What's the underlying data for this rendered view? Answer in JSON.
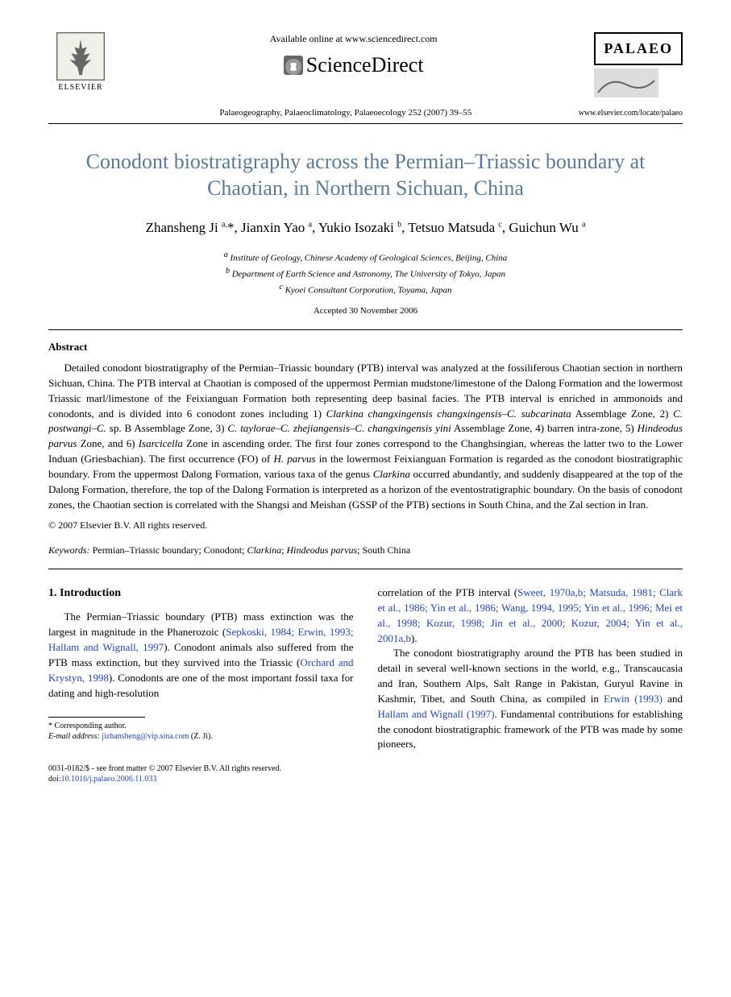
{
  "header": {
    "available_text": "Available online at www.sciencedirect.com",
    "sciencedirect": "ScienceDirect",
    "elsevier": "ELSEVIER",
    "palaeo": "PALAEO",
    "journal_ref": "Palaeogeography, Palaeoclimatology, Palaeoecology 252 (2007) 39–55",
    "journal_url": "www.elsevier.com/locate/palaeo"
  },
  "title": "Conodont biostratigraphy across the Permian–Triassic boundary at Chaotian, in Northern Sichuan, China",
  "authors_html": "Zhansheng Ji <span class=\"sup\">a,</span>*, Jianxin Yao <span class=\"sup\">a</span>, Yukio Isozaki <span class=\"sup\">b</span>, Tetsuo Matsuda <span class=\"sup\">c</span>, Guichun Wu <span class=\"sup\">a</span>",
  "affiliations": {
    "a": "Institute of Geology, Chinese Academy of Geological Sciences, Beijing, China",
    "b": "Department of Earth Science and Astronomy, The University of Tokyo, Japan",
    "c": "Kyoei Consultant Corporation, Toyama, Japan"
  },
  "accepted": "Accepted 30 November 2006",
  "abstract": {
    "label": "Abstract",
    "text": "Detailed conodont biostratigraphy of the Permian–Triassic boundary (PTB) interval was analyzed at the fossiliferous Chaotian section in northern Sichuan, China. The PTB interval at Chaotian is composed of the uppermost Permian mudstone/limestone of the Dalong Formation and the lowermost Triassic marl/limestone of the Feixianguan Formation both representing deep basinal facies. The PTB interval is enriched in ammonoids and conodonts, and is divided into 6 conodont zones including 1) <em>Clarkina changxingensis changxingensis–C. subcarinata</em> Assemblage Zone, 2) <em>C. postwangi–C.</em> sp. B Assemblage Zone, 3) <em>C. taylorae–C. zhejiangensis–C. changxingensis yini</em> Assemblage Zone, 4) barren intra-zone, 5) <em>Hindeodus parvus</em> Zone, and 6) <em>Isarcicella</em> Zone in ascending order. The first four zones correspond to the Changhsingian, whereas the latter two to the Lower Induan (Griesbachian). The first occurrence (FO) of <em>H. parvus</em> in the lowermost Feixianguan Formation is regarded as the conodont biostratigraphic boundary. From the uppermost Dalong Formation, various taxa of the genus <em>Clarkina</em> occurred abundantly, and suddenly disappeared at the top of the Dalong Formation, therefore, the top of the Dalong Formation is interpreted as a horizon of the eventostratigraphic boundary. On the basis of conodont zones, the Chaotian section is correlated with the Shangsi and Meishan (GSSP of the PTB) sections in South China, and the Zal section in Iran.",
    "copyright": "© 2007 Elsevier B.V. All rights reserved."
  },
  "keywords": {
    "label": "Keywords:",
    "text": "Permian–Triassic boundary; Conodont; Clarkina; Hindeodus parvus; South China"
  },
  "section1": {
    "heading": "1. Introduction",
    "col1_p1_pre": "The Permian–Triassic boundary (PTB) mass extinction was the largest in magnitude in the Phanerozoic (",
    "col1_p1_ref1": "Sepkoski, 1984; Erwin, 1993; Hallam and Wignall, 1997",
    "col1_p1_mid": "). Conodont animals also suffered from the PTB mass extinction, but they survived into the Triassic (",
    "col1_p1_ref2": "Orchard and Krystyn, 1998",
    "col1_p1_post": "). Conodonts are one of the most important fossil taxa for dating and high-resolution",
    "col2_p1_pre": "correlation of the PTB interval (",
    "col2_p1_ref": "Sweet, 1970a,b; Matsuda, 1981; Clark et al., 1986; Yin et al., 1986; Wang, 1994, 1995; Yin et al., 1996; Mei et al., 1998; Kozur, 1998; Jin et al., 2000; Kozur, 2004; Yin et al., 2001a,b",
    "col2_p1_post": ").",
    "col2_p2_pre": "The conodont biostratigraphy around the PTB has been studied in detail in several well-known sections in the world, e.g., Transcaucasia and Iran, Southern Alps, Salt Range in Pakistan, Guryul Ravine in Kashmir, Tibet, and South China, as compiled in ",
    "col2_p2_ref1": "Erwin (1993)",
    "col2_p2_mid": " and ",
    "col2_p2_ref2": "Hallam and Wignall (1997)",
    "col2_p2_post": ". Fundamental contributions for establishing the conodont biostratigraphic framework of the PTB was made by some pioneers,"
  },
  "footnote": {
    "corresponding": "* Corresponding author.",
    "email_label": "E-mail address:",
    "email": "jizhansheng@vip.sina.com",
    "email_post": "(Z. Ji)."
  },
  "footer": {
    "line1": "0031-0182/$ - see front matter © 2007 Elsevier B.V. All rights reserved.",
    "doi_label": "doi:",
    "doi": "10.1016/j.palaeo.2006.11.033"
  },
  "colors": {
    "title": "#5a7a9a",
    "link": "#2244cc",
    "text": "#000000",
    "background": "#ffffff"
  }
}
